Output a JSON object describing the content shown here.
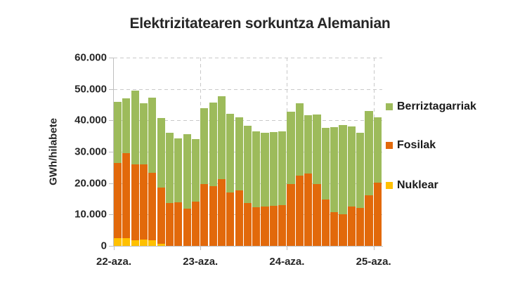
{
  "chart_data": {
    "type": "bar",
    "stacked": true,
    "title": "Elektrizitatearen sorkuntza Alemanian",
    "xlabel": "",
    "ylabel": "GWh/hilabete",
    "ylim": [
      0,
      60000
    ],
    "grid": "dashed",
    "legend_position": "right",
    "y_ticks": [
      {
        "value": 0,
        "label": "0"
      },
      {
        "value": 10000,
        "label": "10.000"
      },
      {
        "value": 20000,
        "label": "20.000"
      },
      {
        "value": 30000,
        "label": "30.000"
      },
      {
        "value": 40000,
        "label": "40.000"
      },
      {
        "value": 50000,
        "label": "50.000"
      },
      {
        "value": 60000,
        "label": "60.000"
      }
    ],
    "x_tick_labels": [
      "22-aza.",
      "23-aza.",
      "24-aza.",
      "25-aza."
    ],
    "x_tick_boundaries": [
      0,
      10,
      20,
      30
    ],
    "bar_count": 31,
    "series": [
      {
        "name": "Nuklear",
        "color": "#FFC000",
        "values": [
          2500,
          2500,
          1800,
          2000,
          1800,
          600,
          0,
          0,
          0,
          0,
          0,
          0,
          0,
          0,
          0,
          0,
          0,
          0,
          0,
          0,
          0,
          0,
          0,
          0,
          0,
          0,
          0,
          0,
          0,
          0,
          0
        ]
      },
      {
        "name": "Fosilak",
        "color": "#E2690B",
        "values": [
          24000,
          27000,
          24200,
          24000,
          21400,
          17900,
          13600,
          13900,
          11900,
          14100,
          19700,
          19100,
          21300,
          17100,
          17600,
          13600,
          12400,
          12600,
          12800,
          13100,
          19600,
          22300,
          23000,
          19800,
          14800,
          10800,
          10100,
          12500,
          12000,
          16100,
          20200
        ]
      },
      {
        "name": "Berriztagarriak",
        "color": "#9DBB5B",
        "values": [
          19500,
          17600,
          23400,
          19400,
          24000,
          22300,
          22400,
          20400,
          23600,
          19900,
          24100,
          26500,
          26300,
          25000,
          23400,
          24800,
          24000,
          23400,
          23400,
          23400,
          23100,
          23200,
          18600,
          22000,
          22800,
          27100,
          28400,
          25600,
          24100,
          26800,
          20700
        ]
      }
    ],
    "legend": [
      {
        "label": "Berriztagarriak",
        "color": "#9DBB5B"
      },
      {
        "label": "Fosilak",
        "color": "#E2690B"
      },
      {
        "label": "Nuklear",
        "color": "#FFC000"
      }
    ]
  },
  "colors": {
    "background": "#FFFFFF",
    "axis": "#BFBFBF",
    "gridline": "#C9C9C9",
    "text": "#262626"
  }
}
